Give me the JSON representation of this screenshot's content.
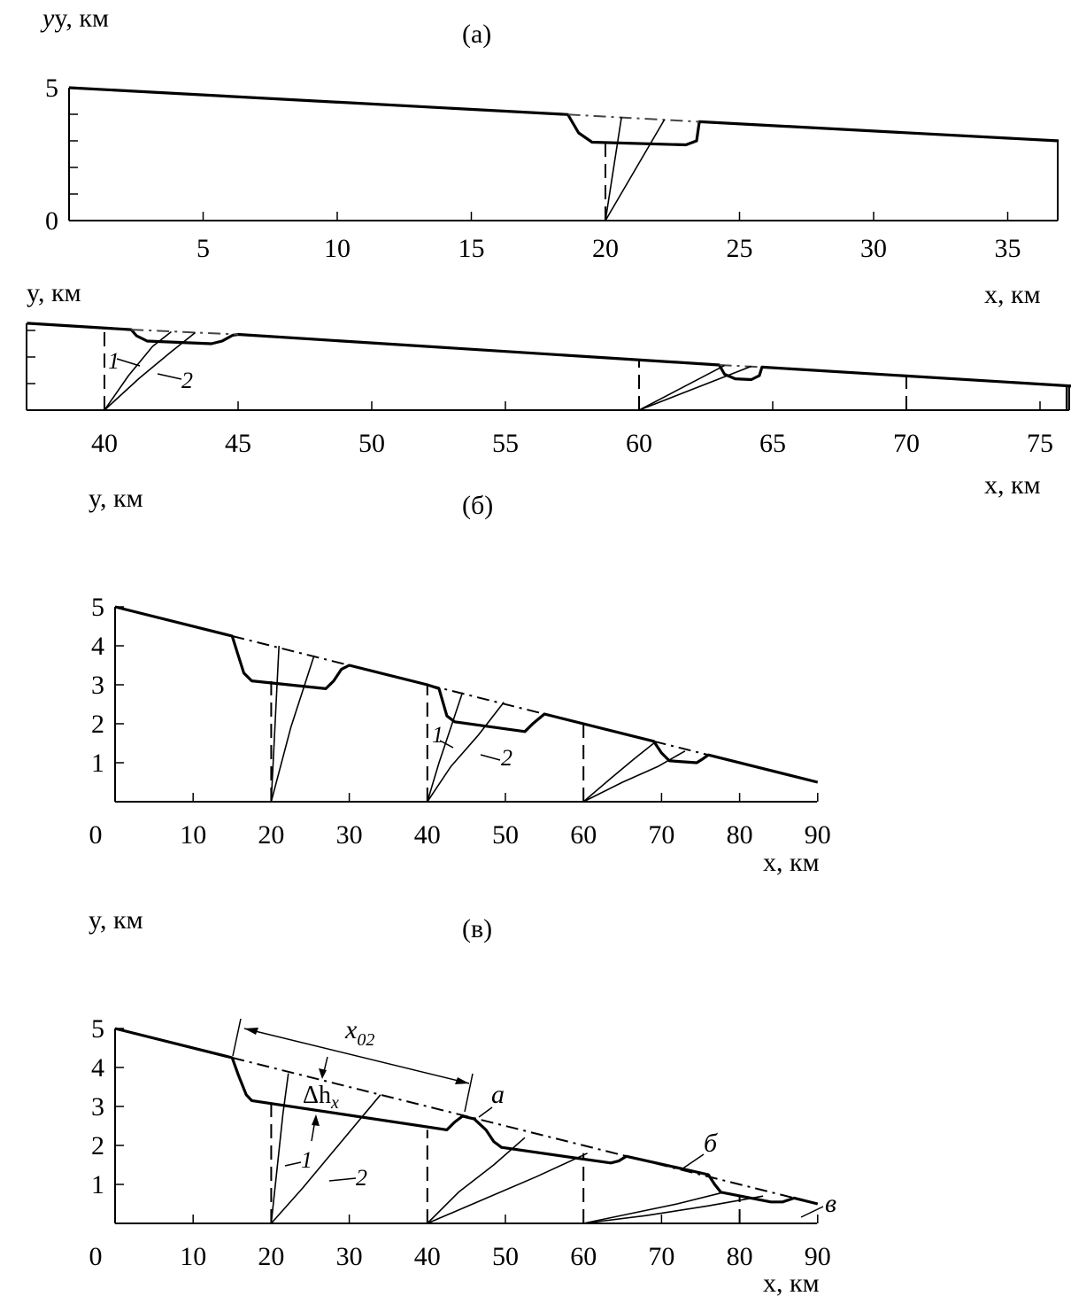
{
  "chart_data": [
    {
      "id": "a-top",
      "type": "line",
      "panel_label": "(а)",
      "xlabel": "x, км",
      "ylabel": "y, км",
      "xlim": [
        0,
        36.9
      ],
      "ylim": [
        0,
        5
      ],
      "xticks": [
        5,
        10,
        15,
        20,
        25,
        30,
        35
      ],
      "yticks_labeled": [
        0,
        5
      ],
      "yticks_minor": [
        1,
        2,
        3,
        4
      ],
      "series": [
        {
          "style": "profile",
          "points": [
            [
              0,
              5
            ],
            [
              18.6,
              3.99
            ],
            [
              19.0,
              3.3
            ],
            [
              19.5,
              2.95
            ],
            [
              23.0,
              2.85
            ],
            [
              23.4,
              3.0
            ],
            [
              23.5,
              3.72
            ],
            [
              36.9,
              3.0
            ]
          ]
        },
        {
          "style": "dashdot",
          "points": [
            [
              18.6,
              3.99
            ],
            [
              23.5,
              3.72
            ]
          ]
        },
        {
          "style": "dashed",
          "points": [
            [
              20,
              0
            ],
            [
              20,
              2.9
            ]
          ]
        },
        {
          "style": "thin",
          "points": [
            [
              20,
              0
            ],
            [
              20.6,
              3.9
            ]
          ]
        },
        {
          "style": "thin",
          "points": [
            [
              20,
              0
            ],
            [
              22.2,
              3.8
            ]
          ]
        }
      ]
    },
    {
      "id": "a-bottom",
      "type": "line",
      "xlabel": "x, км",
      "ylabel": "y, км",
      "xlim": [
        37,
        76.3
      ],
      "ylim": [
        0,
        3.4
      ],
      "xticks": [
        40,
        45,
        50,
        55,
        60,
        65,
        70,
        75
      ],
      "yticks_minor": [
        1,
        2,
        3
      ],
      "curve_labels": [
        "1",
        "2"
      ],
      "series": [
        {
          "style": "profile",
          "points": [
            [
              37.1,
              3.27
            ],
            [
              41,
              3.03
            ],
            [
              41.2,
              2.8
            ],
            [
              41.6,
              2.6
            ],
            [
              44,
              2.5
            ],
            [
              44.4,
              2.6
            ],
            [
              44.8,
              2.82
            ],
            [
              45,
              2.85
            ],
            [
              63,
              1.7
            ],
            [
              63.2,
              1.35
            ],
            [
              63.6,
              1.18
            ],
            [
              64.2,
              1.15
            ],
            [
              64.5,
              1.3
            ],
            [
              64.6,
              1.62
            ],
            [
              76.3,
              0.9
            ]
          ]
        },
        {
          "style": "dashdot",
          "points": [
            [
              41,
              3.03
            ],
            [
              45,
              2.85
            ]
          ]
        },
        {
          "style": "dashdot",
          "points": [
            [
              63,
              1.7
            ],
            [
              64.6,
              1.62
            ]
          ]
        },
        {
          "style": "dashed",
          "points": [
            [
              40,
              0
            ],
            [
              40,
              3.1
            ]
          ]
        },
        {
          "style": "dashed",
          "points": [
            [
              60,
              0
            ],
            [
              60,
              1.85
            ]
          ]
        },
        {
          "style": "dashed",
          "points": [
            [
              70,
              0
            ],
            [
              70,
              1.25
            ]
          ]
        },
        {
          "style": "solid",
          "points": [
            [
              76,
              0
            ],
            [
              76,
              0.92
            ]
          ]
        },
        {
          "style": "thin",
          "points": [
            [
              40,
              0
            ],
            [
              40.9,
              1.3
            ],
            [
              41.8,
              2.4
            ],
            [
              42.5,
              2.95
            ]
          ]
        },
        {
          "style": "thin",
          "points": [
            [
              40,
              0
            ],
            [
              41.3,
              1.2
            ],
            [
              42.5,
              2.2
            ],
            [
              43.4,
              2.92
            ]
          ]
        },
        {
          "style": "thin",
          "points": [
            [
              60,
              0
            ],
            [
              63.2,
              1.68
            ]
          ]
        },
        {
          "style": "thin",
          "points": [
            [
              60,
              0
            ],
            [
              64.2,
              1.65
            ]
          ]
        }
      ]
    },
    {
      "id": "b",
      "type": "line",
      "panel_label": "(б)",
      "xlabel": "x, км",
      "ylabel": "y, км",
      "xlim": [
        0,
        90
      ],
      "ylim": [
        0,
        5
      ],
      "xticks": [
        0,
        10,
        20,
        30,
        40,
        50,
        60,
        70,
        80,
        90
      ],
      "yticks": [
        1,
        2,
        3,
        4,
        5
      ],
      "curve_labels": [
        "1",
        "2"
      ],
      "series": [
        {
          "style": "profile",
          "points": [
            [
              0,
              5
            ],
            [
              15,
              4.25
            ],
            [
              15.7,
              3.8
            ],
            [
              16.5,
              3.3
            ],
            [
              17.5,
              3.1
            ],
            [
              27,
              2.9
            ],
            [
              28,
              3.1
            ],
            [
              29,
              3.4
            ],
            [
              30,
              3.5
            ],
            [
              40,
              3.0
            ],
            [
              41.5,
              2.9
            ],
            [
              42.5,
              2.2
            ],
            [
              43.5,
              2.05
            ],
            [
              52.5,
              1.8
            ],
            [
              53.5,
              2.0
            ],
            [
              55,
              2.25
            ],
            [
              69,
              1.55
            ],
            [
              70,
              1.25
            ],
            [
              71,
              1.05
            ],
            [
              74.5,
              1.0
            ],
            [
              75.3,
              1.1
            ],
            [
              76,
              1.2
            ],
            [
              90,
              0.5
            ]
          ]
        },
        {
          "style": "dashdot",
          "points": [
            [
              15,
              4.25
            ],
            [
              30,
              3.5
            ]
          ]
        },
        {
          "style": "dashdot",
          "points": [
            [
              40,
              3.0
            ],
            [
              55,
              2.25
            ]
          ]
        },
        {
          "style": "dashdot",
          "points": [
            [
              69,
              1.55
            ],
            [
              76,
              1.2
            ]
          ]
        },
        {
          "style": "dashed",
          "points": [
            [
              20,
              0
            ],
            [
              20,
              3.1
            ]
          ]
        },
        {
          "style": "dashed",
          "points": [
            [
              40,
              0
            ],
            [
              40,
              3.0
            ]
          ]
        },
        {
          "style": "dashed",
          "points": [
            [
              60,
              0
            ],
            [
              60,
              2.0
            ]
          ]
        },
        {
          "style": "thin",
          "points": [
            [
              20,
              0
            ],
            [
              20.5,
              2
            ],
            [
              21,
              4.0
            ]
          ]
        },
        {
          "style": "thin",
          "points": [
            [
              20,
              0
            ],
            [
              22.5,
              1.9
            ],
            [
              25.5,
              3.75
            ]
          ]
        },
        {
          "style": "thin",
          "points": [
            [
              40,
              0
            ],
            [
              41.5,
              1.0
            ],
            [
              43,
              1.9
            ],
            [
              44.5,
              2.8
            ]
          ]
        },
        {
          "style": "thin",
          "points": [
            [
              40,
              0
            ],
            [
              43,
              0.9
            ],
            [
              46.5,
              1.7
            ],
            [
              49.8,
              2.55
            ]
          ]
        },
        {
          "style": "thin",
          "points": [
            [
              60,
              0
            ],
            [
              63.5,
              0.6
            ],
            [
              66.5,
              1.1
            ],
            [
              69,
              1.5
            ]
          ]
        },
        {
          "style": "thin",
          "points": [
            [
              60,
              0
            ],
            [
              65,
              0.5
            ],
            [
              69.5,
              0.9
            ],
            [
              73,
              1.3
            ]
          ]
        }
      ]
    },
    {
      "id": "v",
      "type": "line",
      "panel_label": "(в)",
      "xlabel": "x, км",
      "ylabel": "y, км",
      "xlim": [
        0,
        90
      ],
      "ylim": [
        0,
        5
      ],
      "xticks": [
        0,
        10,
        20,
        30,
        40,
        50,
        60,
        70,
        80,
        90
      ],
      "yticks": [
        1,
        2,
        3,
        4,
        5
      ],
      "curve_labels": [
        "1",
        "2"
      ],
      "annotations": {
        "x02": "x",
        "x02_sub": "02",
        "dh": "Δh",
        "dh_sub": "x",
        "a": "а",
        "b": "б",
        "v": "в"
      },
      "series": [
        {
          "style": "profile",
          "points": [
            [
              0,
              5
            ],
            [
              15,
              4.25
            ],
            [
              15.8,
              3.8
            ],
            [
              16.8,
              3.3
            ],
            [
              17.5,
              3.15
            ],
            [
              42.5,
              2.4
            ],
            [
              43.5,
              2.6
            ],
            [
              44.5,
              2.75
            ],
            [
              46,
              2.68
            ],
            [
              47.5,
              2.4
            ],
            [
              48.5,
              2.1
            ],
            [
              49.5,
              1.95
            ],
            [
              63.5,
              1.55
            ],
            [
              64.5,
              1.6
            ],
            [
              65.5,
              1.72
            ],
            [
              76,
              1.25
            ],
            [
              76.8,
              1.0
            ],
            [
              77.6,
              0.8
            ],
            [
              84,
              0.55
            ],
            [
              85.5,
              0.55
            ],
            [
              87,
              0.65
            ],
            [
              90,
              0.5
            ]
          ]
        },
        {
          "style": "dashdot",
          "points": [
            [
              15,
              4.25
            ],
            [
              88,
              0.6
            ]
          ]
        },
        {
          "style": "dashed",
          "points": [
            [
              20,
              0
            ],
            [
              20,
              3.05
            ]
          ]
        },
        {
          "style": "dashed",
          "points": [
            [
              40,
              0
            ],
            [
              40,
              2.4
            ]
          ]
        },
        {
          "style": "dashed",
          "points": [
            [
              60,
              0
            ],
            [
              60,
              1.8
            ]
          ]
        },
        {
          "style": "dashed",
          "points": [
            [
              80,
              0
            ],
            [
              80,
              0.7
            ]
          ]
        },
        {
          "style": "thin",
          "points": [
            [
              20,
              0
            ],
            [
              20.8,
              1.5
            ],
            [
              21.5,
              2.8
            ],
            [
              22.2,
              3.85
            ]
          ]
        },
        {
          "style": "thin",
          "points": [
            [
              20,
              0
            ],
            [
              24,
              0.9
            ],
            [
              29,
              2.1
            ],
            [
              34,
              3.3
            ]
          ]
        },
        {
          "style": "thin",
          "points": [
            [
              40,
              0
            ],
            [
              44,
              0.8
            ],
            [
              48.5,
              1.5
            ],
            [
              52.5,
              2.2
            ]
          ]
        },
        {
          "style": "thin",
          "points": [
            [
              40,
              0
            ],
            [
              47,
              0.6
            ],
            [
              54,
              1.2
            ],
            [
              60.5,
              1.8
            ]
          ]
        },
        {
          "style": "thin",
          "points": [
            [
              60,
              0
            ],
            [
              66,
              0.25
            ],
            [
              72,
              0.5
            ],
            [
              78,
              0.8
            ]
          ]
        },
        {
          "style": "thin",
          "points": [
            [
              60,
              0
            ],
            [
              68,
              0.2
            ],
            [
              76,
              0.45
            ],
            [
              83,
              0.7
            ]
          ]
        }
      ]
    }
  ]
}
